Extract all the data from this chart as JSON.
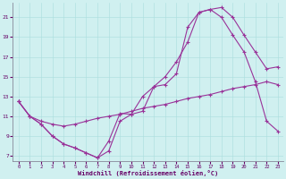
{
  "xlabel": "Windchill (Refroidissement éolien,°C)",
  "bg_color": "#d0f0f0",
  "line_color": "#993399",
  "marker": "+",
  "markersize": 3,
  "linewidth": 0.8,
  "xlim": [
    -0.5,
    23.5
  ],
  "ylim": [
    6.5,
    22.5
  ],
  "xticks": [
    0,
    1,
    2,
    3,
    4,
    5,
    6,
    7,
    8,
    9,
    10,
    11,
    12,
    13,
    14,
    15,
    16,
    17,
    18,
    19,
    20,
    21,
    22,
    23
  ],
  "yticks": [
    7,
    9,
    11,
    13,
    15,
    17,
    19,
    21
  ],
  "series1_x": [
    0,
    1,
    2,
    3,
    4,
    5,
    6,
    7,
    8,
    9,
    10,
    11,
    12,
    13,
    14,
    15,
    16,
    17,
    18,
    19,
    20,
    21,
    22,
    23
  ],
  "series1_y": [
    12.5,
    11.0,
    10.2,
    9.0,
    8.2,
    7.8,
    7.3,
    6.8,
    8.5,
    11.3,
    11.2,
    11.5,
    14.0,
    14.2,
    15.3,
    20.0,
    21.5,
    21.8,
    22.0,
    21.0,
    19.2,
    17.5,
    15.8,
    16.0
  ],
  "series2_x": [
    0,
    1,
    2,
    3,
    4,
    5,
    6,
    7,
    8,
    9,
    10,
    11,
    12,
    13,
    14,
    15,
    16,
    17,
    18,
    19,
    20,
    21,
    22,
    23
  ],
  "series2_y": [
    12.5,
    11.0,
    10.2,
    9.0,
    8.2,
    7.8,
    7.3,
    6.8,
    7.5,
    10.5,
    11.2,
    13.0,
    14.0,
    15.0,
    16.5,
    18.5,
    21.5,
    21.8,
    21.0,
    19.2,
    17.5,
    14.5,
    10.5,
    9.5
  ],
  "series3_x": [
    0,
    1,
    2,
    3,
    4,
    5,
    6,
    7,
    8,
    9,
    10,
    11,
    12,
    13,
    14,
    15,
    16,
    17,
    18,
    19,
    20,
    21,
    22,
    23
  ],
  "series3_y": [
    12.5,
    11.0,
    10.5,
    10.2,
    10.0,
    10.2,
    10.5,
    10.8,
    11.0,
    11.2,
    11.5,
    11.8,
    12.0,
    12.2,
    12.5,
    12.8,
    13.0,
    13.2,
    13.5,
    13.8,
    14.0,
    14.2,
    14.5,
    14.2
  ]
}
